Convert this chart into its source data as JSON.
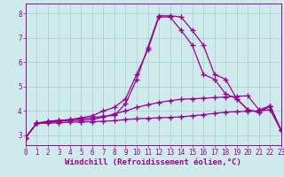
{
  "xlabel": "Windchill (Refroidissement éolien,°C)",
  "background_color": "#ceeaea",
  "line_color": "#990099",
  "grid_color": "#aad4d4",
  "x_values": [
    0,
    1,
    2,
    3,
    4,
    5,
    6,
    7,
    8,
    9,
    10,
    11,
    12,
    13,
    14,
    15,
    16,
    17,
    18,
    19,
    20,
    21,
    22,
    23
  ],
  "line1": [
    2.9,
    3.5,
    3.58,
    3.62,
    3.64,
    3.68,
    3.72,
    3.78,
    3.82,
    4.3,
    5.3,
    6.6,
    7.9,
    7.9,
    7.85,
    7.3,
    6.7,
    5.5,
    5.3,
    4.5,
    4.05,
    3.95,
    4.2,
    3.2
  ],
  "line2": [
    2.9,
    3.5,
    3.55,
    3.6,
    3.65,
    3.72,
    3.8,
    4.0,
    4.15,
    4.5,
    5.5,
    6.5,
    7.85,
    7.85,
    7.3,
    6.7,
    5.5,
    5.3,
    4.7,
    4.5,
    4.05,
    3.95,
    4.2,
    3.2
  ],
  "line3": [
    2.9,
    3.5,
    3.53,
    3.58,
    3.6,
    3.62,
    3.65,
    3.75,
    3.88,
    4.0,
    4.15,
    4.25,
    4.35,
    4.42,
    4.48,
    4.5,
    4.52,
    4.55,
    4.57,
    4.6,
    4.62,
    4.05,
    4.2,
    3.2
  ],
  "line4": [
    2.9,
    3.5,
    3.5,
    3.52,
    3.54,
    3.55,
    3.56,
    3.58,
    3.6,
    3.65,
    3.68,
    3.7,
    3.72,
    3.74,
    3.76,
    3.8,
    3.85,
    3.9,
    3.95,
    3.97,
    3.99,
    4.0,
    4.05,
    3.2
  ],
  "ylim": [
    2.6,
    8.4
  ],
  "xlim": [
    0,
    23
  ],
  "yticks": [
    3,
    4,
    5,
    6,
    7,
    8
  ],
  "xticks": [
    0,
    1,
    2,
    3,
    4,
    5,
    6,
    7,
    8,
    9,
    10,
    11,
    12,
    13,
    14,
    15,
    16,
    17,
    18,
    19,
    20,
    21,
    22,
    23
  ],
  "marker": "+",
  "markersize": 4,
  "linewidth": 0.9,
  "fontsize_ticks": 5.5,
  "fontsize_label": 6.5
}
